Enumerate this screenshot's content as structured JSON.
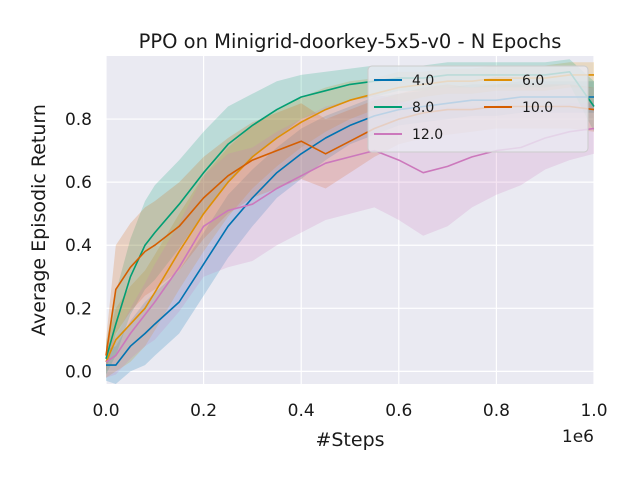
{
  "chart_data": {
    "type": "line",
    "title": "PPO on Minigrid-doorkey-5x5-v0 - N Epochs",
    "xlabel": "#Steps",
    "ylabel": "Average Episodic Return",
    "x_offset_label": "1e6",
    "xlim": [
      0,
      1.0
    ],
    "ylim": [
      -0.04,
      1.0
    ],
    "xticks": [
      0.0,
      0.2,
      0.4,
      0.6,
      0.8,
      1.0
    ],
    "xtick_labels": [
      "0.0",
      "0.2",
      "0.4",
      "0.6",
      "0.8",
      "1.0"
    ],
    "yticks": [
      0.0,
      0.2,
      0.4,
      0.6,
      0.8
    ],
    "ytick_labels": [
      "0.0",
      "0.2",
      "0.4",
      "0.6",
      "0.8"
    ],
    "grid": true,
    "legend_position": "top-right",
    "x": [
      0.0,
      0.02,
      0.05,
      0.08,
      0.1,
      0.15,
      0.2,
      0.25,
      0.3,
      0.35,
      0.4,
      0.45,
      0.5,
      0.55,
      0.6,
      0.65,
      0.7,
      0.75,
      0.8,
      0.85,
      0.9,
      0.95,
      1.0
    ],
    "series": [
      {
        "name": "4.0",
        "color": "#0173b2",
        "values": [
          0.02,
          0.02,
          0.08,
          0.12,
          0.15,
          0.22,
          0.34,
          0.46,
          0.55,
          0.63,
          0.69,
          0.74,
          0.78,
          0.81,
          0.83,
          0.84,
          0.85,
          0.86,
          0.86,
          0.87,
          0.87,
          0.87,
          0.87
        ],
        "band": [
          0.05,
          0.06,
          0.08,
          0.1,
          0.1,
          0.1,
          0.1,
          0.1,
          0.09,
          0.08,
          0.08,
          0.07,
          0.06,
          0.06,
          0.05,
          0.05,
          0.05,
          0.05,
          0.05,
          0.05,
          0.05,
          0.05,
          0.05
        ]
      },
      {
        "name": "6.0",
        "color": "#de8f05",
        "values": [
          0.03,
          0.1,
          0.15,
          0.2,
          0.25,
          0.38,
          0.5,
          0.6,
          0.68,
          0.74,
          0.79,
          0.83,
          0.86,
          0.88,
          0.9,
          0.91,
          0.92,
          0.92,
          0.93,
          0.93,
          0.93,
          0.94,
          0.94
        ],
        "band": [
          0.05,
          0.1,
          0.12,
          0.12,
          0.12,
          0.12,
          0.12,
          0.11,
          0.1,
          0.09,
          0.08,
          0.07,
          0.06,
          0.05,
          0.05,
          0.04,
          0.04,
          0.04,
          0.04,
          0.04,
          0.04,
          0.04,
          0.04
        ]
      },
      {
        "name": "8.0",
        "color": "#029e73",
        "values": [
          0.04,
          0.15,
          0.3,
          0.4,
          0.44,
          0.53,
          0.63,
          0.72,
          0.78,
          0.83,
          0.87,
          0.89,
          0.91,
          0.92,
          0.93,
          0.93,
          0.94,
          0.94,
          0.94,
          0.94,
          0.94,
          0.95,
          0.84
        ],
        "band": [
          0.05,
          0.1,
          0.12,
          0.14,
          0.15,
          0.14,
          0.13,
          0.12,
          0.1,
          0.09,
          0.07,
          0.06,
          0.05,
          0.05,
          0.04,
          0.04,
          0.04,
          0.04,
          0.04,
          0.04,
          0.04,
          0.04,
          0.08
        ]
      },
      {
        "name": "10.0",
        "color": "#d55e00",
        "values": [
          0.05,
          0.26,
          0.33,
          0.38,
          0.4,
          0.46,
          0.55,
          0.62,
          0.67,
          0.7,
          0.73,
          0.69,
          0.73,
          0.77,
          0.8,
          0.82,
          0.83,
          0.83,
          0.84,
          0.84,
          0.84,
          0.84,
          0.83
        ],
        "band": [
          0.05,
          0.14,
          0.14,
          0.14,
          0.14,
          0.14,
          0.13,
          0.12,
          0.12,
          0.12,
          0.12,
          0.11,
          0.1,
          0.09,
          0.08,
          0.08,
          0.08,
          0.07,
          0.07,
          0.07,
          0.07,
          0.07,
          0.07
        ]
      },
      {
        "name": "12.0",
        "color": "#cc78bc",
        "values": [
          0.03,
          0.05,
          0.12,
          0.18,
          0.22,
          0.33,
          0.46,
          0.51,
          0.53,
          0.58,
          0.62,
          0.66,
          0.68,
          0.7,
          0.67,
          0.63,
          0.65,
          0.68,
          0.7,
          0.71,
          0.74,
          0.76,
          0.77
        ],
        "band": [
          0.05,
          0.06,
          0.08,
          0.1,
          0.12,
          0.14,
          0.16,
          0.18,
          0.18,
          0.18,
          0.18,
          0.18,
          0.18,
          0.18,
          0.19,
          0.2,
          0.19,
          0.16,
          0.14,
          0.12,
          0.1,
          0.09,
          0.08
        ]
      }
    ]
  }
}
